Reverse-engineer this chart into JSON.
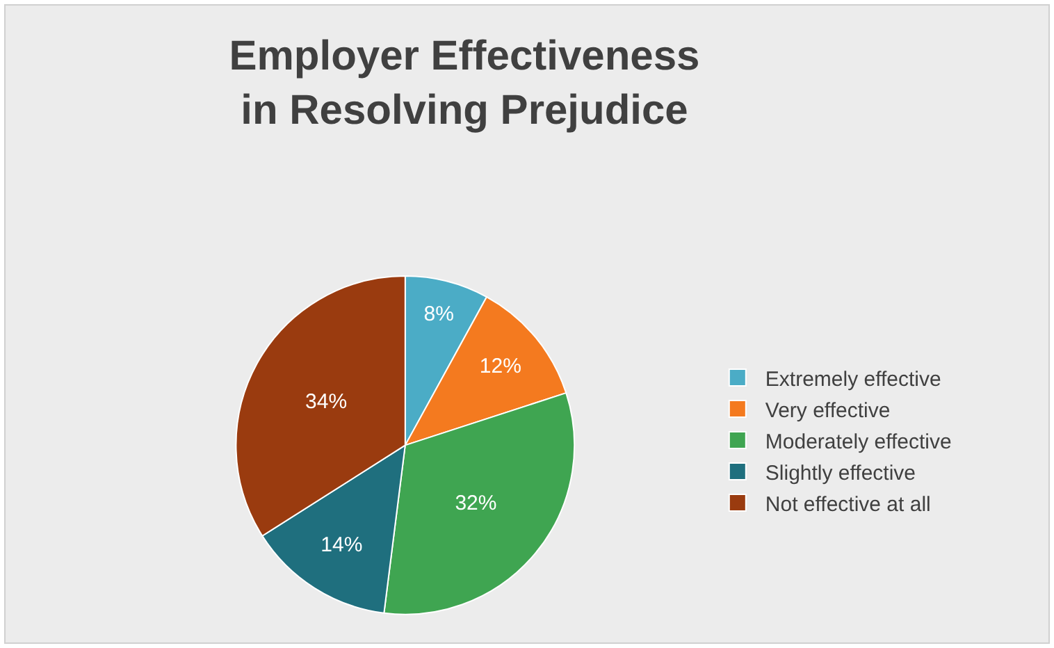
{
  "chart_data": {
    "type": "pie",
    "title": "Employer Effectiveness in Resolving Prejudice",
    "categories": [
      "Extremely effective",
      "Very effective",
      "Moderately effective",
      "Slightly effective",
      "Not effective at all"
    ],
    "values": [
      8,
      12,
      32,
      14,
      34
    ],
    "colors": [
      "#4bacc6",
      "#f47a1f",
      "#3fa551",
      "#1f6f7e",
      "#9a3b0f"
    ],
    "value_labels": [
      "8%",
      "12%",
      "32%",
      "14%",
      "34%"
    ],
    "legend": "right"
  }
}
